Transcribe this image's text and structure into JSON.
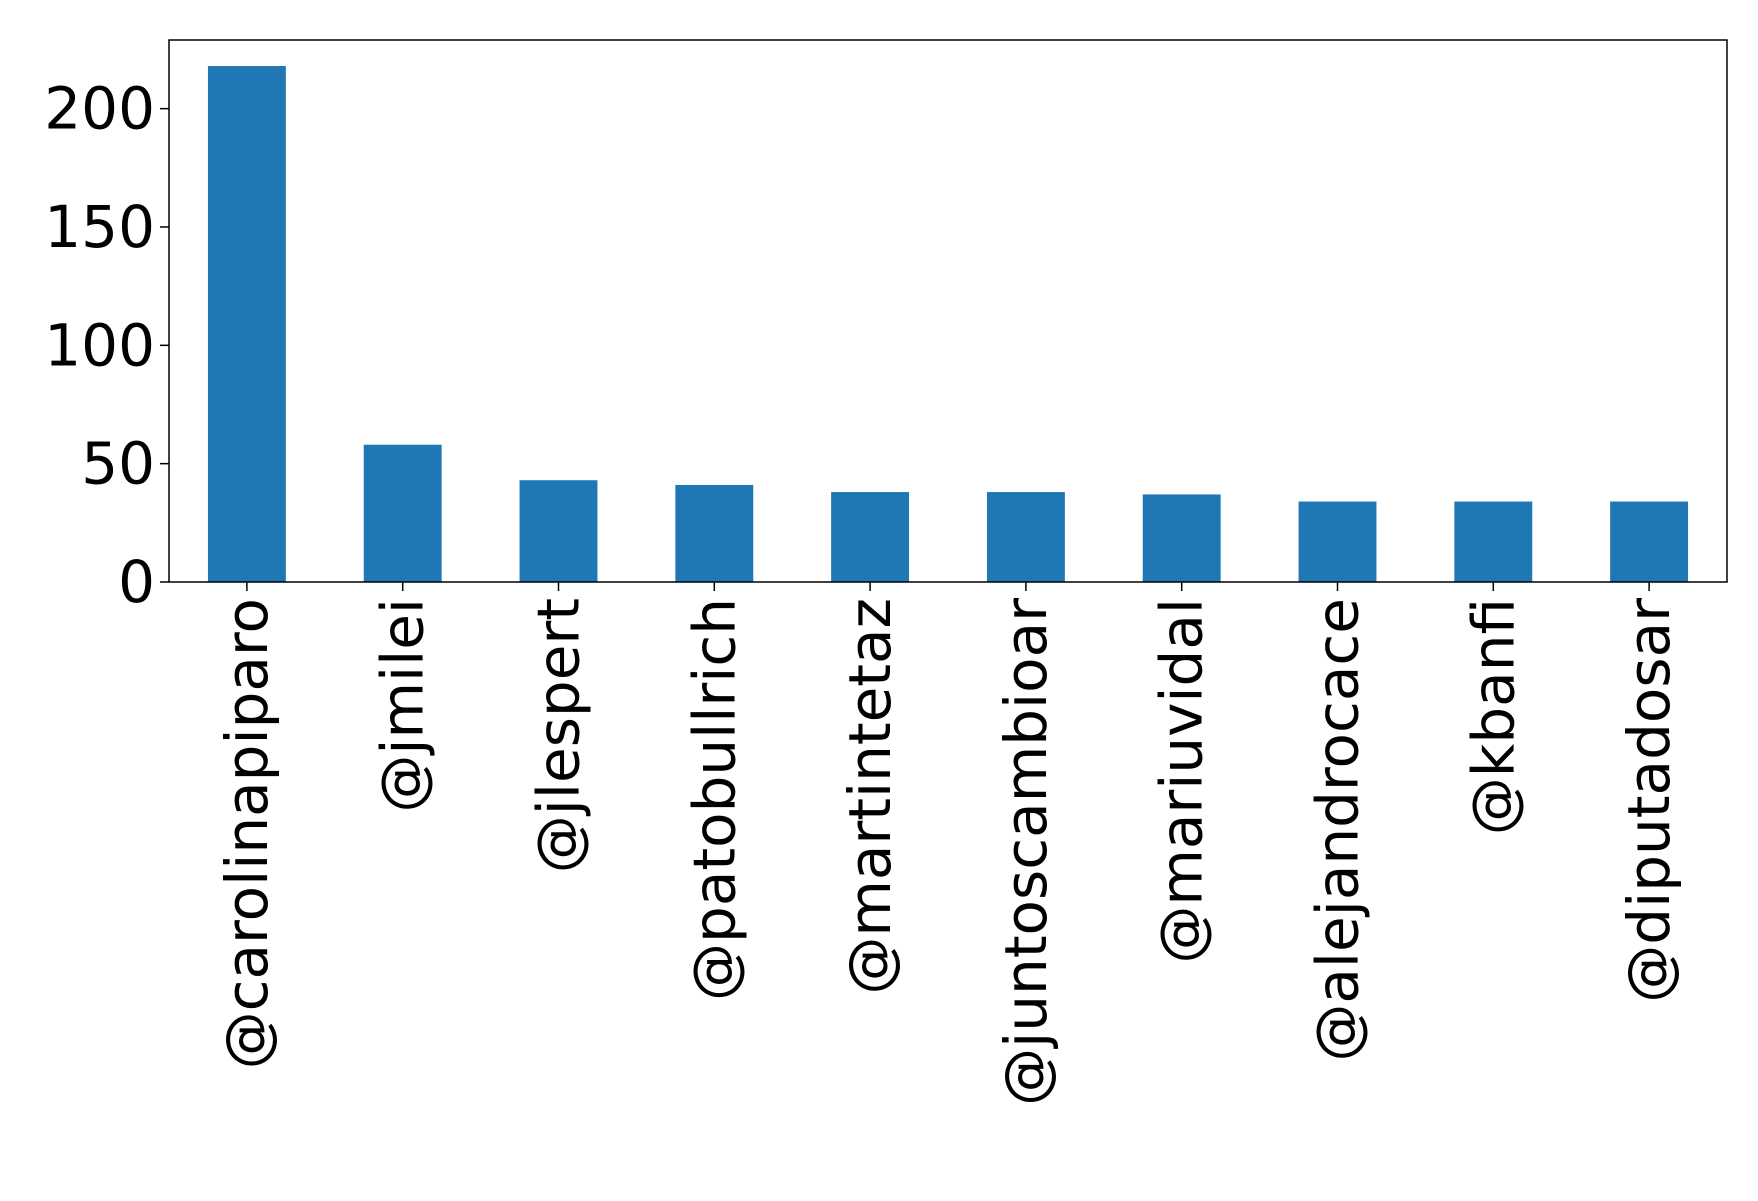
{
  "chart_data": {
    "type": "bar",
    "title": "",
    "xlabel": "",
    "ylabel": "",
    "categories": [
      "@carolinapiparo",
      "@jmilei",
      "@jlespert",
      "@patobullrich",
      "@martintetaz",
      "@juntoscambioar",
      "@mariuvidal",
      "@alejandrocace",
      "@kbanfi",
      "@diputadosar"
    ],
    "values": [
      218,
      58,
      43,
      41,
      38,
      38,
      37,
      34,
      34,
      34
    ],
    "ylim": [
      0,
      229
    ],
    "yticks": [
      0,
      50,
      100,
      150,
      200
    ],
    "grid": false,
    "legend": "none",
    "bar_color": "#1f77b4"
  }
}
